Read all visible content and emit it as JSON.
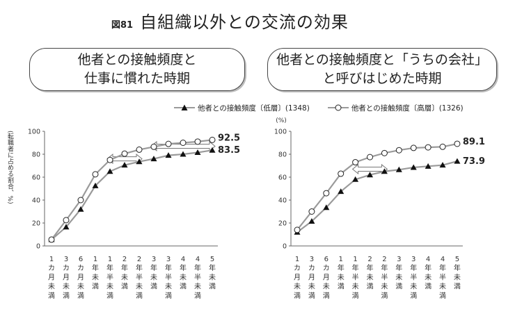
{
  "figure": {
    "label": "図81",
    "title": "自組織以外との交流の効果"
  },
  "legend": {
    "low": {
      "label": "他者との接触頻度〔低層〕(1348)",
      "marker": "filled-triangle"
    },
    "high": {
      "label": "他者との接触頻度〔高層〕(1326)",
      "marker": "open-circle"
    }
  },
  "colors": {
    "line": "#9a9a9a",
    "marker": "#111111",
    "arrow": "#777777",
    "axis": "#666666"
  },
  "chart_data": [
    {
      "type": "line",
      "title_lines": [
        "他者との接触頻度と",
        "仕事に慣れた時期"
      ],
      "ylabel": "(転職者に占める割合、%)",
      "ylim": [
        0,
        100
      ],
      "yticks": [
        0,
        20,
        40,
        60,
        80,
        100
      ],
      "categories": [
        "1カ月未満",
        "3カ月未満",
        "6カ月未満",
        "1年未満",
        "1年半未満",
        "2年未満",
        "2年半未満",
        "3年未満",
        "3年半未満",
        "4年未満",
        "4年半未満",
        "5年未満"
      ],
      "series": [
        {
          "name": "他者との接触頻度〔低層〕(1348)",
          "marker": "filled-triangle",
          "values": [
            5.5,
            16.5,
            32,
            52.5,
            65,
            70.5,
            73.5,
            76,
            79,
            80,
            81.5,
            83.5
          ]
        },
        {
          "name": "他者との接触頻度〔高層〕(1326)",
          "marker": "open-circle",
          "values": [
            5.5,
            22.5,
            40,
            62.5,
            75,
            80.5,
            84,
            86.5,
            89,
            90,
            91,
            92.5
          ]
        }
      ],
      "end_labels": [
        "92.5",
        "83.5"
      ],
      "arrows": [
        {
          "from": 4,
          "to": 6,
          "y": 76
        },
        {
          "from": 7,
          "to": 11,
          "y": 87
        }
      ]
    },
    {
      "type": "line",
      "title_lines": [
        "他者との接触頻度と「うちの会社」",
        "と呼びはじめた時期"
      ],
      "ylabel": "(%)",
      "ylim": [
        0,
        100
      ],
      "yticks": [
        0,
        20,
        40,
        60,
        80,
        100
      ],
      "categories": [
        "1カ月未満",
        "3カ月未満",
        "6カ月未満",
        "1年未満",
        "1年半未満",
        "2年未満",
        "2年半未満",
        "3年未満",
        "3年半未満",
        "4年未満",
        "4年半未満",
        "5年未満"
      ],
      "series": [
        {
          "name": "他者との接触頻度〔低層〕(1348)",
          "marker": "filled-triangle",
          "values": [
            12,
            21.5,
            33.5,
            47.5,
            58,
            62,
            65,
            66.5,
            68.5,
            69.5,
            70.5,
            73.9
          ]
        },
        {
          "name": "他者との接触頻度〔高層〕(1326)",
          "marker": "open-circle",
          "values": [
            14,
            30,
            46,
            63,
            73,
            77.5,
            81,
            83.5,
            85.5,
            86,
            86.5,
            89.1
          ]
        }
      ],
      "end_labels": [
        "89.1",
        "73.9"
      ],
      "arrows": [
        {
          "from": 4,
          "to": 6,
          "y": 67
        }
      ]
    }
  ]
}
